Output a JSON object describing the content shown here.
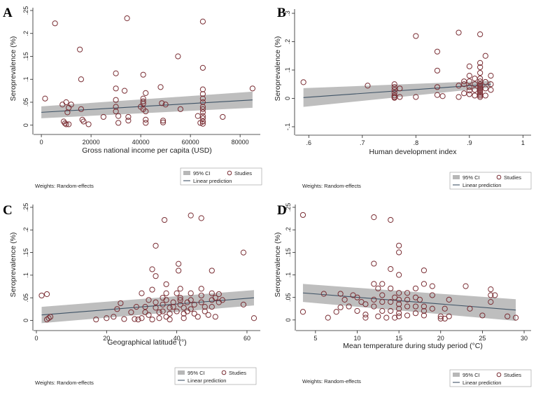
{
  "colors": {
    "points": "#7a2e34",
    "ci": "#b7b7b7",
    "line": "#3f5366"
  },
  "legend": {
    "ci_label": "95% CI",
    "line_label": "Linear prediction",
    "points_label": "Studies"
  },
  "weights_note": "Weights: Random-effects",
  "chart_data": [
    {
      "panel": "A",
      "type": "scatter",
      "xlabel": "Gross national income per capita (USD)",
      "ylabel": "Seroprevalence (%)",
      "xlim": [
        -2000,
        87000
      ],
      "ylim": [
        -0.005,
        0.25
      ],
      "xticks": [
        0,
        20000,
        40000,
        60000,
        80000
      ],
      "xtick_labels": [
        "0",
        "20000",
        "40000",
        "60000",
        "80000"
      ],
      "yticks": [
        0,
        0.05,
        0.1,
        0.15,
        0.2,
        0.25
      ],
      "ytick_labels": [
        "0",
        ".05",
        ".1",
        ".15",
        ".2",
        ".25"
      ],
      "fit": {
        "x": [
          0,
          85000
        ],
        "y": [
          0.028,
          0.055
        ],
        "lo": [
          0.015,
          0.038
        ],
        "hi": [
          0.041,
          0.073
        ]
      },
      "points": [
        [
          1500,
          0.058
        ],
        [
          5500,
          0.222
        ],
        [
          8500,
          0.045
        ],
        [
          9000,
          0.008
        ],
        [
          9500,
          0.004
        ],
        [
          10000,
          0.002
        ],
        [
          10000,
          0.05
        ],
        [
          10500,
          0.028
        ],
        [
          11000,
          0.038
        ],
        [
          11000,
          0.002
        ],
        [
          12000,
          0.045
        ],
        [
          15500,
          0.165
        ],
        [
          16000,
          0.035
        ],
        [
          16000,
          0.1
        ],
        [
          16500,
          0.012
        ],
        [
          17000,
          0.008
        ],
        [
          19000,
          0.002
        ],
        [
          25000,
          0.018
        ],
        [
          30000,
          0.113
        ],
        [
          30000,
          0.08
        ],
        [
          30000,
          0.055
        ],
        [
          30000,
          0.04
        ],
        [
          30000,
          0.03
        ],
        [
          31000,
          0.02
        ],
        [
          31000,
          0.005
        ],
        [
          33500,
          0.075
        ],
        [
          34500,
          0.233
        ],
        [
          35000,
          0.01
        ],
        [
          35000,
          0.018
        ],
        [
          40000,
          0.04
        ],
        [
          41000,
          0.11
        ],
        [
          41000,
          0.058
        ],
        [
          41000,
          0.052
        ],
        [
          41000,
          0.047
        ],
        [
          41000,
          0.035
        ],
        [
          42000,
          0.07
        ],
        [
          42000,
          0.03
        ],
        [
          42000,
          0.012
        ],
        [
          42000,
          0.005
        ],
        [
          48000,
          0.083
        ],
        [
          48500,
          0.048
        ],
        [
          49000,
          0.01
        ],
        [
          49000,
          0.006
        ],
        [
          50000,
          0.045
        ],
        [
          55000,
          0.15
        ],
        [
          56000,
          0.035
        ],
        [
          63000,
          0.02
        ],
        [
          65000,
          0.226
        ],
        [
          65000,
          0.125
        ],
        [
          65000,
          0.078
        ],
        [
          65000,
          0.068
        ],
        [
          65000,
          0.058
        ],
        [
          65000,
          0.05
        ],
        [
          65000,
          0.04
        ],
        [
          65000,
          0.035
        ],
        [
          65000,
          0.028
        ],
        [
          65000,
          0.02
        ],
        [
          65000,
          0.015
        ],
        [
          65000,
          0.008
        ],
        [
          65000,
          0.003
        ],
        [
          65000,
          0.008
        ],
        [
          64000,
          0.005
        ],
        [
          73000,
          0.018
        ],
        [
          85000,
          0.08
        ]
      ]
    },
    {
      "panel": "B",
      "type": "scatter",
      "xlabel": "Human development index",
      "ylabel": "Seroprevalence (%)",
      "xlim": [
        0.58,
        1.01
      ],
      "ylim": [
        -0.105,
        0.305
      ],
      "xticks": [
        0.6,
        0.7,
        0.8,
        0.9,
        1
      ],
      "xtick_labels": [
        ".6",
        ".7",
        ".8",
        ".9",
        "1"
      ],
      "yticks": [
        -0.1,
        0,
        0.1,
        0.2,
        0.3
      ],
      "ytick_labels": [
        "-.1",
        "0",
        ".1",
        ".2",
        ".3"
      ],
      "fit": {
        "x": [
          0.59,
          0.94
        ],
        "y": [
          0.003,
          0.05
        ],
        "lo": [
          -0.03,
          0.038
        ],
        "hi": [
          0.036,
          0.062
        ]
      },
      "points": [
        [
          0.59,
          0.057
        ],
        [
          0.71,
          0.045
        ],
        [
          0.76,
          0.03
        ],
        [
          0.76,
          0.05
        ],
        [
          0.76,
          0.04
        ],
        [
          0.76,
          0.02
        ],
        [
          0.76,
          0.01
        ],
        [
          0.76,
          0.005
        ],
        [
          0.76,
          0.002
        ],
        [
          0.77,
          0.035
        ],
        [
          0.77,
          0.005
        ],
        [
          0.8,
          0.22
        ],
        [
          0.8,
          0.005
        ],
        [
          0.84,
          0.165
        ],
        [
          0.84,
          0.098
        ],
        [
          0.84,
          0.04
        ],
        [
          0.84,
          0.012
        ],
        [
          0.85,
          0.008
        ],
        [
          0.88,
          0.232
        ],
        [
          0.88,
          0.005
        ],
        [
          0.88,
          0.045
        ],
        [
          0.89,
          0.05
        ],
        [
          0.89,
          0.06
        ],
        [
          0.89,
          0.018
        ],
        [
          0.9,
          0.113
        ],
        [
          0.9,
          0.08
        ],
        [
          0.9,
          0.06
        ],
        [
          0.9,
          0.04
        ],
        [
          0.9,
          0.028
        ],
        [
          0.9,
          0.015
        ],
        [
          0.91,
          0.07
        ],
        [
          0.91,
          0.05
        ],
        [
          0.91,
          0.03
        ],
        [
          0.91,
          0.01
        ],
        [
          0.92,
          0.226
        ],
        [
          0.92,
          0.125
        ],
        [
          0.92,
          0.11
        ],
        [
          0.92,
          0.09
        ],
        [
          0.92,
          0.07
        ],
        [
          0.92,
          0.06
        ],
        [
          0.92,
          0.05
        ],
        [
          0.92,
          0.045
        ],
        [
          0.92,
          0.04
        ],
        [
          0.92,
          0.035
        ],
        [
          0.92,
          0.03
        ],
        [
          0.92,
          0.025
        ],
        [
          0.92,
          0.02
        ],
        [
          0.92,
          0.015
        ],
        [
          0.92,
          0.01
        ],
        [
          0.92,
          0.005
        ],
        [
          0.93,
          0.15
        ],
        [
          0.93,
          0.058
        ],
        [
          0.93,
          0.035
        ],
        [
          0.93,
          0.01
        ],
        [
          0.94,
          0.08
        ],
        [
          0.94,
          0.05
        ],
        [
          0.94,
          0.03
        ]
      ]
    },
    {
      "panel": "C",
      "type": "scatter",
      "xlabel": "Geographical latitude (°)",
      "ylabel": "Seroprevalence (%)",
      "xlim": [
        0,
        63
      ],
      "ylim": [
        -0.007,
        0.25
      ],
      "xticks": [
        0,
        20,
        40,
        60
      ],
      "xtick_labels": [
        "0",
        "20",
        "40",
        "60"
      ],
      "yticks": [
        0,
        0.05,
        0.1,
        0.15,
        0.2,
        0.25
      ],
      "ytick_labels": [
        "0",
        ".05",
        ".1",
        ".15",
        ".2",
        ".25"
      ],
      "fit": {
        "x": [
          1.5,
          62
        ],
        "y": [
          0.012,
          0.05
        ],
        "lo": [
          -0.006,
          0.033
        ],
        "hi": [
          0.03,
          0.067
        ]
      },
      "points": [
        [
          1.5,
          0.055
        ],
        [
          3,
          0.058
        ],
        [
          3,
          0.002
        ],
        [
          3.5,
          0.005
        ],
        [
          4,
          0.008
        ],
        [
          17,
          0.002
        ],
        [
          20,
          0.005
        ],
        [
          22,
          0.008
        ],
        [
          23,
          0.025
        ],
        [
          24,
          0.038
        ],
        [
          25,
          0.003
        ],
        [
          27,
          0.018
        ],
        [
          28,
          0.003
        ],
        [
          28.5,
          0.03
        ],
        [
          29,
          0.002
        ],
        [
          30,
          0.06
        ],
        [
          30,
          0.005
        ],
        [
          31,
          0.03
        ],
        [
          31,
          0.018
        ],
        [
          32,
          0.045
        ],
        [
          32,
          0.012
        ],
        [
          33,
          0.113
        ],
        [
          33,
          0.068
        ],
        [
          33,
          0.002
        ],
        [
          34,
          0.165
        ],
        [
          34,
          0.098
        ],
        [
          34,
          0.04
        ],
        [
          34,
          0.028
        ],
        [
          35,
          0.018
        ],
        [
          35,
          0.005
        ],
        [
          36,
          0.05
        ],
        [
          36,
          0.035
        ],
        [
          36,
          0.02
        ],
        [
          36.5,
          0.222
        ],
        [
          37,
          0.08
        ],
        [
          37,
          0.06
        ],
        [
          37,
          0.045
        ],
        [
          37,
          0.008
        ],
        [
          38,
          0.028
        ],
        [
          38,
          0.015
        ],
        [
          38,
          0.002
        ],
        [
          39,
          0.04
        ],
        [
          39,
          0.03
        ],
        [
          40,
          0.06
        ],
        [
          40,
          0.02
        ],
        [
          40.5,
          0.125
        ],
        [
          40.5,
          0.11
        ],
        [
          41,
          0.07
        ],
        [
          41,
          0.05
        ],
        [
          41,
          0.045
        ],
        [
          41,
          0.035
        ],
        [
          42,
          0.028
        ],
        [
          42,
          0.015
        ],
        [
          42,
          0.005
        ],
        [
          43,
          0.04
        ],
        [
          43,
          0.02
        ],
        [
          44,
          0.232
        ],
        [
          44,
          0.06
        ],
        [
          44,
          0.045
        ],
        [
          44,
          0.025
        ],
        [
          45,
          0.035
        ],
        [
          45,
          0.015
        ],
        [
          46,
          0.008
        ],
        [
          47,
          0.226
        ],
        [
          47,
          0.07
        ],
        [
          47,
          0.055
        ],
        [
          47,
          0.04
        ],
        [
          48,
          0.03
        ],
        [
          48,
          0.02
        ],
        [
          49,
          0.012
        ],
        [
          50,
          0.11
        ],
        [
          50,
          0.06
        ],
        [
          50,
          0.045
        ],
        [
          50,
          0.03
        ],
        [
          51,
          0.05
        ],
        [
          51,
          0.008
        ],
        [
          52,
          0.058
        ],
        [
          52,
          0.04
        ],
        [
          53,
          0.045
        ],
        [
          59,
          0.15
        ],
        [
          59,
          0.035
        ],
        [
          62,
          0.005
        ]
      ]
    },
    {
      "panel": "D",
      "type": "scatter",
      "xlabel": "Mean temperature during study period (°C)",
      "ylabel": "Seroprevalence (%)",
      "xlim": [
        3,
        30.5
      ],
      "ylim": [
        -0.008,
        0.25
      ],
      "xticks": [
        5,
        10,
        15,
        20,
        25,
        30
      ],
      "xtick_labels": [
        "5",
        "10",
        "15",
        "20",
        "25",
        "30"
      ],
      "yticks": [
        0,
        0.05,
        0.1,
        0.15,
        0.2,
        0.25
      ],
      "ytick_labels": [
        "0",
        ".05",
        ".1",
        ".15",
        ".2",
        ".25"
      ],
      "fit": {
        "x": [
          3.5,
          29
        ],
        "y": [
          0.06,
          0.022
        ],
        "lo": [
          0.04,
          -0.002
        ],
        "hi": [
          0.08,
          0.046
        ]
      },
      "points": [
        [
          3.5,
          0.233
        ],
        [
          3.5,
          0.018
        ],
        [
          6,
          0.058
        ],
        [
          6.5,
          0.005
        ],
        [
          7.5,
          0.018
        ],
        [
          8,
          0.058
        ],
        [
          8,
          0.028
        ],
        [
          8.5,
          0.045
        ],
        [
          9,
          0.03
        ],
        [
          9.5,
          0.055
        ],
        [
          10,
          0.05
        ],
        [
          10,
          0.02
        ],
        [
          10.5,
          0.04
        ],
        [
          11,
          0.035
        ],
        [
          11,
          0.012
        ],
        [
          11,
          0.005
        ],
        [
          12,
          0.228
        ],
        [
          12,
          0.125
        ],
        [
          12,
          0.08
        ],
        [
          12,
          0.045
        ],
        [
          12,
          0.03
        ],
        [
          12.5,
          0.07
        ],
        [
          12.5,
          0.008
        ],
        [
          13,
          0.08
        ],
        [
          13,
          0.055
        ],
        [
          13,
          0.04
        ],
        [
          13,
          0.02
        ],
        [
          13.5,
          0.005
        ],
        [
          14,
          0.222
        ],
        [
          14,
          0.113
        ],
        [
          14,
          0.07
        ],
        [
          14,
          0.04
        ],
        [
          14,
          0.02
        ],
        [
          14.5,
          0.05
        ],
        [
          14.5,
          0.005
        ],
        [
          15,
          0.165
        ],
        [
          15,
          0.15
        ],
        [
          15,
          0.1
        ],
        [
          15,
          0.06
        ],
        [
          15,
          0.045
        ],
        [
          15,
          0.035
        ],
        [
          15,
          0.025
        ],
        [
          15,
          0.015
        ],
        [
          15,
          0.008
        ],
        [
          16,
          0.06
        ],
        [
          16,
          0.045
        ],
        [
          16,
          0.03
        ],
        [
          16,
          0.01
        ],
        [
          17,
          0.07
        ],
        [
          17,
          0.05
        ],
        [
          17,
          0.03
        ],
        [
          17,
          0.015
        ],
        [
          17.5,
          0.045
        ],
        [
          18,
          0.11
        ],
        [
          18,
          0.08
        ],
        [
          18,
          0.03
        ],
        [
          18,
          0.02
        ],
        [
          18,
          0.01
        ],
        [
          19,
          0.075
        ],
        [
          19,
          0.055
        ],
        [
          19,
          0.025
        ],
        [
          20,
          0.008
        ],
        [
          20,
          0.003
        ],
        [
          20.5,
          0.003
        ],
        [
          20.5,
          0.025
        ],
        [
          21,
          0.045
        ],
        [
          21,
          0.008
        ],
        [
          23,
          0.075
        ],
        [
          23.5,
          0.025
        ],
        [
          25,
          0.01
        ],
        [
          26,
          0.068
        ],
        [
          26,
          0.055
        ],
        [
          26,
          0.04
        ],
        [
          26.5,
          0.055
        ],
        [
          28,
          0.008
        ],
        [
          29,
          0.005
        ]
      ]
    }
  ]
}
